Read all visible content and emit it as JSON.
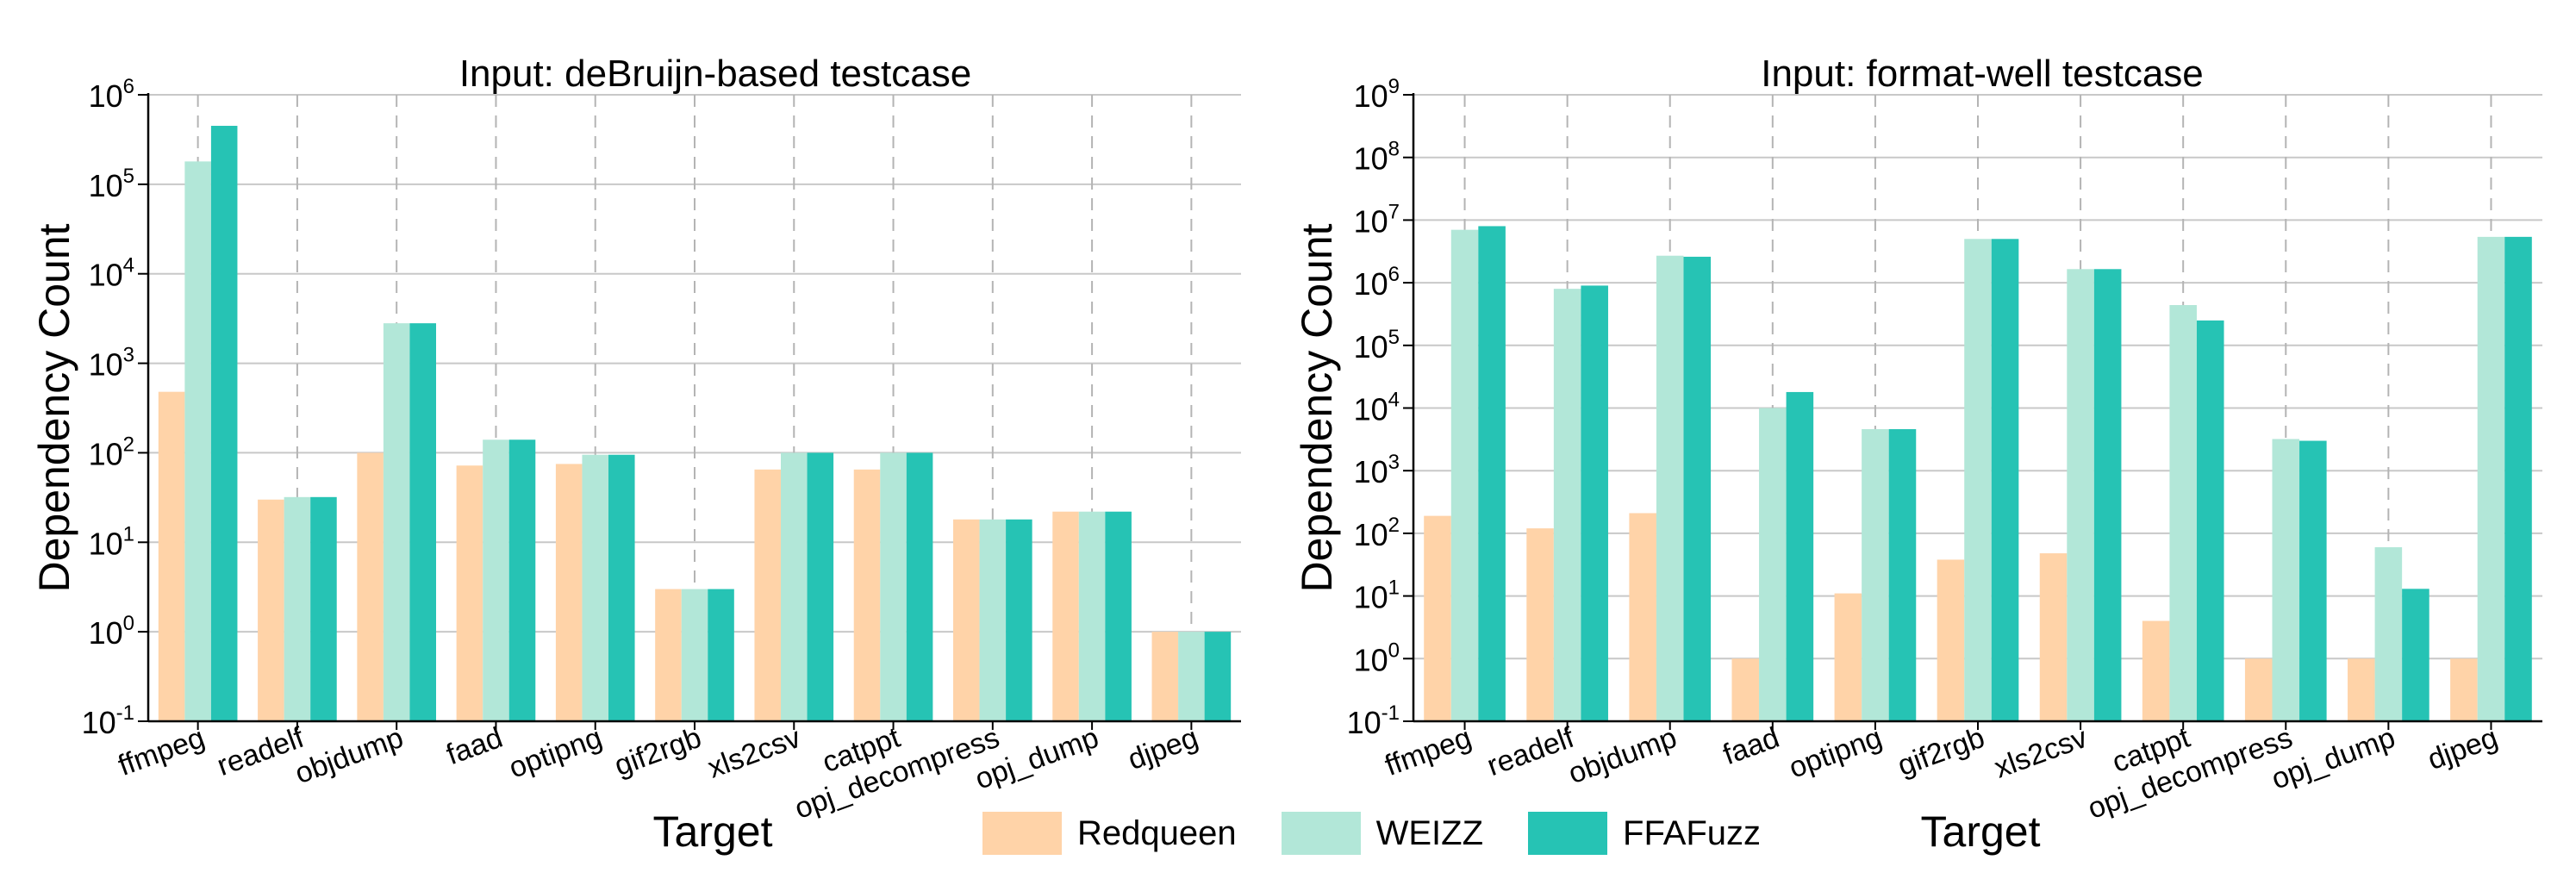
{
  "legend": {
    "items": [
      {
        "label": "Redqueen",
        "color": "#ffd3a8"
      },
      {
        "label": "WEIZZ",
        "color": "#b2e7d8"
      },
      {
        "label": "FFAFuzz",
        "color": "#26c3b4"
      }
    ]
  },
  "chart_data": [
    {
      "type": "bar",
      "title": "Input: deBruijn-based testcase",
      "xlabel": "Target",
      "ylabel": "Dependency Count",
      "yscale": "log",
      "ylim_exp": [
        -1,
        6
      ],
      "yticks": [
        {
          "base": "10",
          "exp": "-1"
        },
        {
          "base": "10",
          "exp": "0"
        },
        {
          "base": "10",
          "exp": "1"
        },
        {
          "base": "10",
          "exp": "2"
        },
        {
          "base": "10",
          "exp": "3"
        },
        {
          "base": "10",
          "exp": "4"
        },
        {
          "base": "10",
          "exp": "5"
        },
        {
          "base": "10",
          "exp": "6"
        }
      ],
      "categories": [
        "ffmpeg",
        "readelf",
        "objdump",
        "faad",
        "optipng",
        "gif2rgb",
        "xls2csv",
        "catppt",
        "opj_decompress",
        "opj_dump",
        "djpeg"
      ],
      "series": [
        {
          "name": "Redqueen",
          "values": [
            480,
            30,
            100,
            72,
            75,
            3,
            65,
            65,
            18,
            22,
            1
          ]
        },
        {
          "name": "WEIZZ",
          "values": [
            180000,
            32,
            2800,
            140,
            95,
            3,
            100,
            100,
            18,
            22,
            1
          ]
        },
        {
          "name": "FFAFuzz",
          "values": [
            450000,
            32,
            2800,
            140,
            95,
            3,
            100,
            100,
            18,
            22,
            1
          ]
        }
      ]
    },
    {
      "type": "bar",
      "title": "Input: format-well testcase",
      "xlabel": "Target",
      "ylabel": "Dependency Count",
      "yscale": "log",
      "ylim_exp": [
        -1,
        9
      ],
      "yticks": [
        {
          "base": "10",
          "exp": "-1"
        },
        {
          "base": "10",
          "exp": "0"
        },
        {
          "base": "10",
          "exp": "1"
        },
        {
          "base": "10",
          "exp": "2"
        },
        {
          "base": "10",
          "exp": "3"
        },
        {
          "base": "10",
          "exp": "4"
        },
        {
          "base": "10",
          "exp": "5"
        },
        {
          "base": "10",
          "exp": "6"
        },
        {
          "base": "10",
          "exp": "7"
        },
        {
          "base": "10",
          "exp": "8"
        },
        {
          "base": "10",
          "exp": "9"
        }
      ],
      "categories": [
        "ffmpeg",
        "readelf",
        "objdump",
        "faad",
        "optipng",
        "gif2rgb",
        "xls2csv",
        "catppt",
        "opj_decompress",
        "opj_dump",
        "djpeg"
      ],
      "series": [
        {
          "name": "Redqueen",
          "values": [
            190,
            120,
            210,
            1,
            11,
            38,
            48,
            4,
            1,
            1,
            1
          ]
        },
        {
          "name": "WEIZZ",
          "values": [
            7000000,
            800000,
            2700000,
            10000,
            4600,
            5000000,
            1650000,
            440000,
            3200,
            60,
            5400000
          ]
        },
        {
          "name": "FFAFuzz",
          "values": [
            8000000,
            900000,
            2600000,
            18000,
            4600,
            5000000,
            1650000,
            250000,
            3000,
            13,
            5400000
          ]
        }
      ]
    }
  ]
}
